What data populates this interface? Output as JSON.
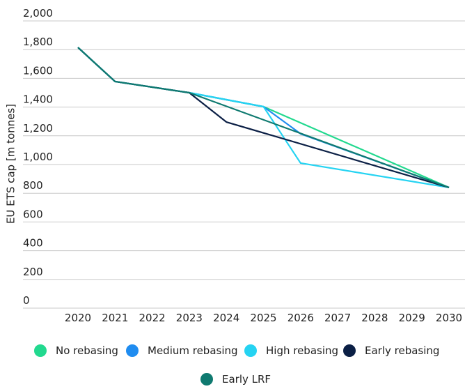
{
  "chart_data": {
    "type": "line",
    "y_label": "EU ETS cap [m tonnes]",
    "xlim": [
      2020,
      2030
    ],
    "xticks": [
      2020,
      2021,
      2022,
      2023,
      2024,
      2025,
      2026,
      2027,
      2028,
      2029,
      2030
    ],
    "ylim": [
      0,
      2000
    ],
    "yticks": [
      0,
      200,
      400,
      600,
      800,
      {
        "value": 1000,
        "label": "1,000"
      },
      {
        "value": 1200,
        "label": "1,200"
      },
      {
        "value": 1400,
        "label": "1,400"
      },
      {
        "value": 1600,
        "label": "1,600"
      },
      {
        "value": 1800,
        "label": "1,800"
      },
      {
        "value": 2000,
        "label": "2,000"
      }
    ],
    "grid": true,
    "legend": "bottom",
    "series": [
      {
        "name": "No rebasing",
        "color": "#22d98f",
        "x": [
          2020,
          2021,
          2023,
          2025,
          2030
        ],
        "values": [
          1815,
          1578,
          1500,
          1403,
          840
        ]
      },
      {
        "name": "Medium rebasing",
        "color": "#1f8cf0",
        "x": [
          2020,
          2021,
          2023,
          2025,
          2026,
          2030
        ],
        "values": [
          1815,
          1578,
          1500,
          1403,
          1214,
          840
        ]
      },
      {
        "name": "High rebasing",
        "color": "#25d3f2",
        "x": [
          2020,
          2021,
          2023,
          2025,
          2026,
          2030
        ],
        "values": [
          1815,
          1578,
          1500,
          1403,
          1010,
          840
        ]
      },
      {
        "name": "Early rebasing",
        "color": "#0b1f45",
        "x": [
          2020,
          2021,
          2023,
          2024,
          2030
        ],
        "values": [
          1815,
          1578,
          1500,
          1296,
          840
        ]
      },
      {
        "name": "Early LRF",
        "color": "#0f7a70",
        "x": [
          2020,
          2021,
          2023,
          2030
        ],
        "values": [
          1815,
          1578,
          1500,
          840
        ]
      }
    ]
  }
}
